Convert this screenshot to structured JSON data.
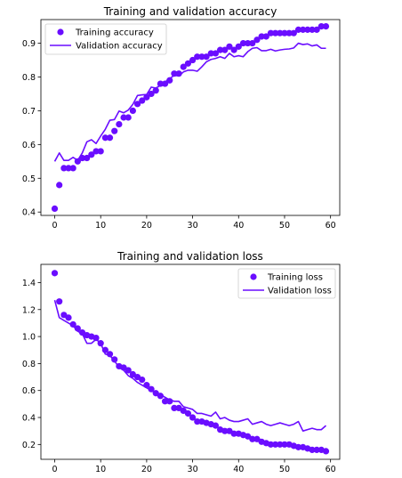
{
  "colors": {
    "series": "#6a0dff",
    "axis": "#000000",
    "background": "#ffffff"
  },
  "chart_data": [
    {
      "type": "line",
      "title": "Training and validation accuracy",
      "xlabel": "",
      "ylabel": "",
      "xlim": [
        -3,
        62
      ],
      "ylim": [
        0.39,
        0.97
      ],
      "x_ticks": [
        0,
        10,
        20,
        30,
        40,
        50,
        60
      ],
      "y_ticks": [
        0.4,
        0.5,
        0.6,
        0.7,
        0.8,
        0.9
      ],
      "legend_position": "top-left",
      "grid": false,
      "x": [
        0,
        1,
        2,
        3,
        4,
        5,
        6,
        7,
        8,
        9,
        10,
        11,
        12,
        13,
        14,
        15,
        16,
        17,
        18,
        19,
        20,
        21,
        22,
        23,
        24,
        25,
        26,
        27,
        28,
        29,
        30,
        31,
        32,
        33,
        34,
        35,
        36,
        37,
        38,
        39,
        40,
        41,
        42,
        43,
        44,
        45,
        46,
        47,
        48,
        49,
        50,
        51,
        52,
        53,
        54,
        55,
        56,
        57,
        58,
        59
      ],
      "series": [
        {
          "name": "Training accuracy",
          "style": "markers",
          "values": [
            0.41,
            0.48,
            0.53,
            0.53,
            0.53,
            0.55,
            0.56,
            0.56,
            0.57,
            0.58,
            0.58,
            0.62,
            0.62,
            0.64,
            0.66,
            0.68,
            0.68,
            0.7,
            0.72,
            0.73,
            0.74,
            0.75,
            0.76,
            0.78,
            0.78,
            0.79,
            0.81,
            0.81,
            0.83,
            0.84,
            0.85,
            0.86,
            0.86,
            0.86,
            0.87,
            0.87,
            0.88,
            0.88,
            0.89,
            0.88,
            0.89,
            0.9,
            0.9,
            0.9,
            0.91,
            0.92,
            0.92,
            0.93,
            0.93,
            0.93,
            0.93,
            0.93,
            0.93,
            0.94,
            0.94,
            0.94,
            0.94,
            0.94,
            0.95,
            0.95
          ]
        },
        {
          "name": "Validation accuracy",
          "style": "line",
          "values": [
            0.55,
            0.575,
            0.553,
            0.553,
            0.562,
            0.553,
            0.575,
            0.608,
            0.614,
            0.603,
            0.625,
            0.645,
            0.672,
            0.674,
            0.699,
            0.694,
            0.702,
            0.719,
            0.745,
            0.747,
            0.748,
            0.77,
            0.767,
            0.775,
            0.785,
            0.795,
            0.805,
            0.803,
            0.815,
            0.82,
            0.82,
            0.817,
            0.83,
            0.845,
            0.852,
            0.855,
            0.86,
            0.855,
            0.87,
            0.86,
            0.863,
            0.86,
            0.875,
            0.885,
            0.887,
            0.878,
            0.878,
            0.882,
            0.877,
            0.88,
            0.882,
            0.883,
            0.886,
            0.9,
            0.896,
            0.898,
            0.892,
            0.895,
            0.885,
            0.885
          ]
        }
      ]
    },
    {
      "type": "line",
      "title": "Training and validation loss",
      "xlabel": "",
      "ylabel": "",
      "xlim": [
        -3,
        62
      ],
      "ylim": [
        0.09,
        1.535
      ],
      "x_ticks": [
        0,
        10,
        20,
        30,
        40,
        50,
        60
      ],
      "y_ticks": [
        0.2,
        0.4,
        0.6,
        0.8,
        1.0,
        1.2,
        1.4
      ],
      "legend_position": "top-right",
      "grid": false,
      "x": [
        0,
        1,
        2,
        3,
        4,
        5,
        6,
        7,
        8,
        9,
        10,
        11,
        12,
        13,
        14,
        15,
        16,
        17,
        18,
        19,
        20,
        21,
        22,
        23,
        24,
        25,
        26,
        27,
        28,
        29,
        30,
        31,
        32,
        33,
        34,
        35,
        36,
        37,
        38,
        39,
        40,
        41,
        42,
        43,
        44,
        45,
        46,
        47,
        48,
        49,
        50,
        51,
        52,
        53,
        54,
        55,
        56,
        57,
        58,
        59
      ],
      "series": [
        {
          "name": "Training loss",
          "style": "markers",
          "values": [
            1.47,
            1.26,
            1.16,
            1.14,
            1.09,
            1.06,
            1.03,
            1.01,
            1.0,
            0.99,
            0.95,
            0.9,
            0.87,
            0.83,
            0.78,
            0.77,
            0.75,
            0.72,
            0.7,
            0.68,
            0.64,
            0.61,
            0.58,
            0.56,
            0.52,
            0.52,
            0.47,
            0.47,
            0.45,
            0.43,
            0.4,
            0.37,
            0.37,
            0.36,
            0.35,
            0.34,
            0.31,
            0.3,
            0.3,
            0.28,
            0.28,
            0.27,
            0.26,
            0.24,
            0.24,
            0.22,
            0.21,
            0.2,
            0.2,
            0.2,
            0.2,
            0.2,
            0.19,
            0.18,
            0.18,
            0.17,
            0.16,
            0.16,
            0.16,
            0.15
          ]
        },
        {
          "name": "Validation loss",
          "style": "line",
          "values": [
            1.27,
            1.14,
            1.12,
            1.1,
            1.08,
            1.04,
            1.02,
            0.95,
            0.95,
            0.98,
            0.95,
            0.87,
            0.86,
            0.82,
            0.77,
            0.75,
            0.71,
            0.69,
            0.66,
            0.64,
            0.62,
            0.6,
            0.58,
            0.57,
            0.55,
            0.53,
            0.52,
            0.52,
            0.48,
            0.47,
            0.46,
            0.43,
            0.43,
            0.42,
            0.41,
            0.44,
            0.39,
            0.4,
            0.38,
            0.37,
            0.37,
            0.38,
            0.39,
            0.35,
            0.36,
            0.37,
            0.35,
            0.34,
            0.35,
            0.36,
            0.35,
            0.34,
            0.35,
            0.37,
            0.3,
            0.31,
            0.32,
            0.31,
            0.31,
            0.34
          ]
        }
      ]
    }
  ]
}
